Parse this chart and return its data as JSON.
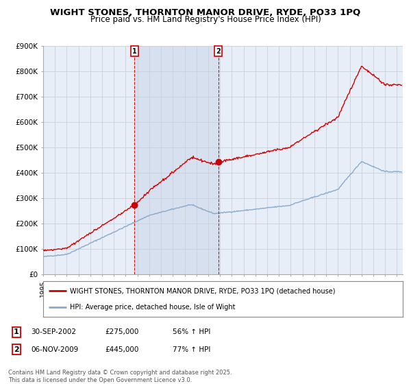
{
  "title": "WIGHT STONES, THORNTON MANOR DRIVE, RYDE, PO33 1PQ",
  "subtitle": "Price paid vs. HM Land Registry's House Price Index (HPI)",
  "ylim": [
    0,
    900000
  ],
  "yticks": [
    0,
    100000,
    200000,
    300000,
    400000,
    500000,
    600000,
    700000,
    800000,
    900000
  ],
  "ytick_labels": [
    "£0",
    "£100K",
    "£200K",
    "£300K",
    "£400K",
    "£500K",
    "£600K",
    "£700K",
    "£800K",
    "£900K"
  ],
  "xlim_start": 1995.0,
  "xlim_end": 2025.5,
  "background_color": "#ffffff",
  "plot_bg_color": "#e8eef8",
  "grid_color": "#c8d0dc",
  "red_line_color": "#cc0000",
  "blue_line_color": "#88aacc",
  "vline_color": "#cc0000",
  "shade_color": "#ccd8e8",
  "shade_alpha": 0.6,
  "purchase1_x": 2002.75,
  "purchase1_y": 275000,
  "purchase2_x": 2009.85,
  "purchase2_y": 445000,
  "legend_line1": "WIGHT STONES, THORNTON MANOR DRIVE, RYDE, PO33 1PQ (detached house)",
  "legend_line2": "HPI: Average price, detached house, Isle of Wight",
  "table_row1": [
    "1",
    "30-SEP-2002",
    "£275,000",
    "56% ↑ HPI"
  ],
  "table_row2": [
    "2",
    "06-NOV-2009",
    "£445,000",
    "77% ↑ HPI"
  ],
  "footer": "Contains HM Land Registry data © Crown copyright and database right 2025.\nThis data is licensed under the Open Government Licence v3.0."
}
